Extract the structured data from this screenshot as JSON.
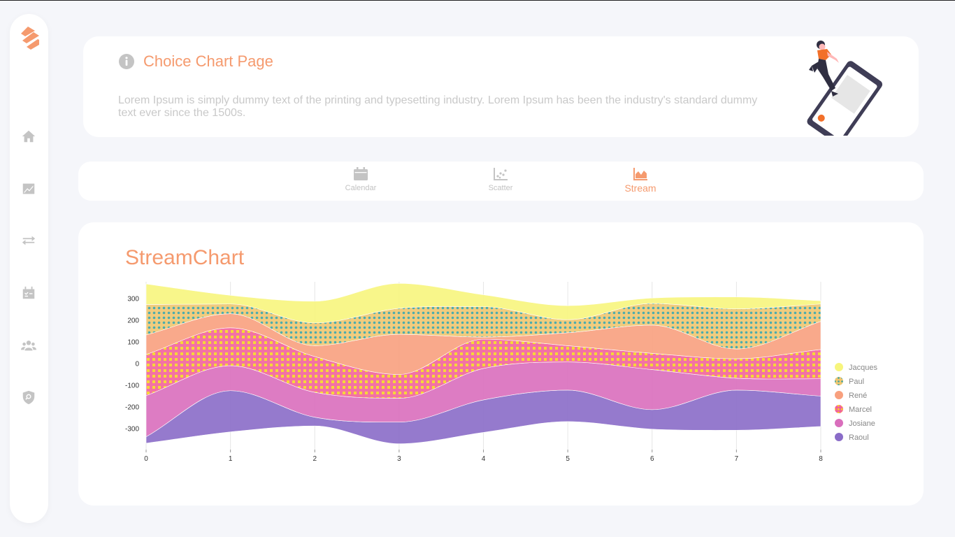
{
  "header": {
    "title": "Choice Chart Page",
    "description": "Lorem Ipsum is simply dummy text of the printing and typesetting industry. Lorem Ipsum has been the industry's standard dummy text ever since the 1500s."
  },
  "sidebar": {
    "items": [
      {
        "icon": "home-icon"
      },
      {
        "icon": "chart-line-icon"
      },
      {
        "icon": "exchange-icon"
      },
      {
        "icon": "calendar-check-icon"
      },
      {
        "icon": "users-icon"
      },
      {
        "icon": "shield-search-icon"
      }
    ]
  },
  "tabs": [
    {
      "label": "Calendar",
      "icon": "calendar-icon",
      "active": false
    },
    {
      "label": "Scatter",
      "icon": "scatter-icon",
      "active": false
    },
    {
      "label": "Stream",
      "icon": "area-chart-icon",
      "active": true
    }
  ],
  "colors": {
    "accent": "#f59a6e",
    "muted": "#c4c4c4"
  },
  "chart": {
    "title": "StreamChart"
  },
  "chart_data": {
    "type": "area",
    "subtype": "stream",
    "offset": "silhouette",
    "x": [
      0,
      1,
      2,
      3,
      4,
      5,
      6,
      7,
      8
    ],
    "ylim": [
      -380,
      380
    ],
    "yticks": [
      -300,
      -200,
      -100,
      0,
      100,
      200,
      300
    ],
    "grid": "vertical",
    "legend": "right",
    "series": [
      {
        "name": "Raoul",
        "color": "#8a6cc8",
        "pattern": "none",
        "values": [
          30,
          190,
          40,
          100,
          150,
          145,
          90,
          185,
          140
        ]
      },
      {
        "name": "Josiane",
        "color": "#d96ebc",
        "pattern": "none",
        "values": [
          190,
          115,
          115,
          110,
          145,
          130,
          185,
          55,
          80
        ]
      },
      {
        "name": "Marcel",
        "color": "#f2639a",
        "pattern": "dots-yellow",
        "values": [
          190,
          175,
          165,
          110,
          135,
          75,
          75,
          90,
          135
        ]
      },
      {
        "name": "René",
        "color": "#f8a07e",
        "pattern": "none",
        "values": [
          90,
          65,
          50,
          185,
          10,
          60,
          130,
          45,
          130
        ]
      },
      {
        "name": "Paul",
        "color": "#f0c770",
        "pattern": "dots-teal",
        "values": [
          140,
          45,
          105,
          120,
          140,
          60,
          100,
          185,
          80
        ]
      },
      {
        "name": "Jacques",
        "color": "#f7f57d",
        "pattern": "none",
        "values": [
          95,
          40,
          100,
          115,
          55,
          65,
          25,
          55,
          15
        ]
      }
    ]
  }
}
